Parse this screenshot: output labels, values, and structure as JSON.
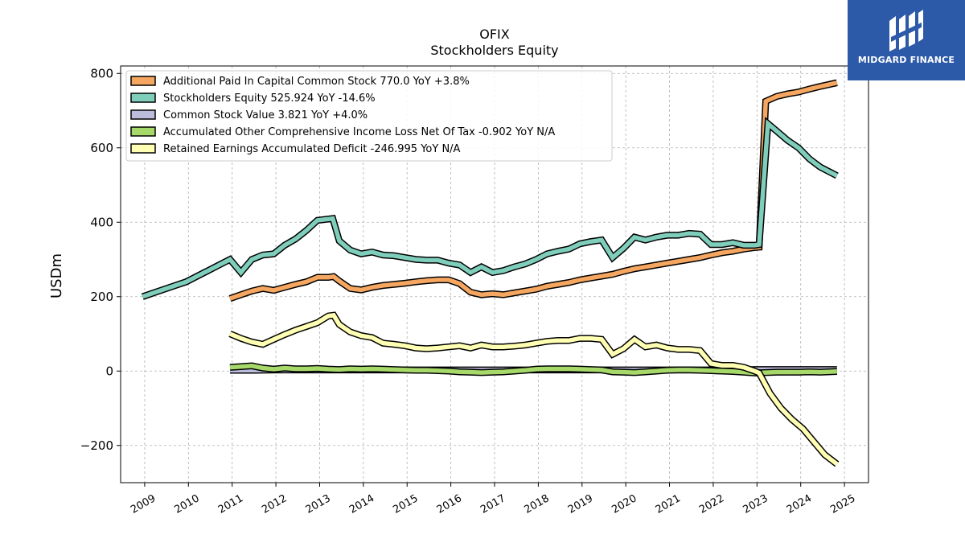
{
  "logo": {
    "text": "MIDGARD FINANCE",
    "color": "#2c5aa8"
  },
  "chart_data": {
    "type": "line",
    "title": "OFIX",
    "subtitle": "Stockholders  Equity",
    "xlabel": "",
    "ylabel": "USDm",
    "xlim": [
      2008.45,
      2025.55
    ],
    "ylim": [
      -300,
      820
    ],
    "yticks": [
      -200,
      0,
      200,
      400,
      600,
      800
    ],
    "yticklabels": [
      "−200",
      "0",
      "200",
      "400",
      "600",
      "800"
    ],
    "xticks": [
      2009,
      2010,
      2011,
      2012,
      2013,
      2014,
      2015,
      2016,
      2017,
      2018,
      2019,
      2020,
      2021,
      2022,
      2023,
      2024,
      2025
    ],
    "xticklabels": [
      "2009",
      "2010",
      "2011",
      "2012",
      "2013",
      "2014",
      "2015",
      "2016",
      "2017",
      "2018",
      "2019",
      "2020",
      "2021",
      "2022",
      "2023",
      "2024",
      "2025"
    ],
    "grid": true,
    "legend_position": "top-left",
    "series": [
      {
        "name": "Additional Paid In Capital Common Stock  770.0 YoY +3.8%",
        "color": "#f5a660",
        "points": [
          [
            2010.95,
            195
          ],
          [
            2011.2,
            205
          ],
          [
            2011.45,
            215
          ],
          [
            2011.7,
            222
          ],
          [
            2011.95,
            217
          ],
          [
            2012.2,
            225
          ],
          [
            2012.45,
            233
          ],
          [
            2012.7,
            240
          ],
          [
            2012.95,
            252
          ],
          [
            2013.2,
            252
          ],
          [
            2013.32,
            254
          ],
          [
            2013.45,
            242
          ],
          [
            2013.7,
            222
          ],
          [
            2013.95,
            218
          ],
          [
            2014.2,
            225
          ],
          [
            2014.45,
            230
          ],
          [
            2014.7,
            233
          ],
          [
            2014.95,
            236
          ],
          [
            2015.2,
            240
          ],
          [
            2015.45,
            243
          ],
          [
            2015.7,
            245
          ],
          [
            2015.95,
            245
          ],
          [
            2016.2,
            235
          ],
          [
            2016.45,
            212
          ],
          [
            2016.7,
            205
          ],
          [
            2016.95,
            208
          ],
          [
            2017.2,
            205
          ],
          [
            2017.45,
            210
          ],
          [
            2017.7,
            215
          ],
          [
            2017.95,
            220
          ],
          [
            2018.2,
            228
          ],
          [
            2018.45,
            233
          ],
          [
            2018.7,
            238
          ],
          [
            2018.95,
            245
          ],
          [
            2019.2,
            250
          ],
          [
            2019.45,
            255
          ],
          [
            2019.7,
            260
          ],
          [
            2019.95,
            268
          ],
          [
            2020.2,
            275
          ],
          [
            2020.45,
            280
          ],
          [
            2020.7,
            285
          ],
          [
            2020.95,
            290
          ],
          [
            2021.2,
            295
          ],
          [
            2021.45,
            300
          ],
          [
            2021.7,
            305
          ],
          [
            2021.95,
            312
          ],
          [
            2022.2,
            318
          ],
          [
            2022.45,
            322
          ],
          [
            2022.7,
            328
          ],
          [
            2022.95,
            332
          ],
          [
            2023.05,
            333
          ],
          [
            2023.2,
            725
          ],
          [
            2023.45,
            738
          ],
          [
            2023.7,
            745
          ],
          [
            2023.95,
            750
          ],
          [
            2024.2,
            758
          ],
          [
            2024.45,
            765
          ],
          [
            2024.83,
            775
          ]
        ]
      },
      {
        "name": "Stockholders Equity  525.924 YoY -14.6%",
        "color": "#7fcdbb",
        "points": [
          [
            2008.95,
            200
          ],
          [
            2009.2,
            210
          ],
          [
            2009.45,
            220
          ],
          [
            2009.7,
            230
          ],
          [
            2009.95,
            240
          ],
          [
            2010.2,
            255
          ],
          [
            2010.45,
            270
          ],
          [
            2010.7,
            285
          ],
          [
            2010.95,
            300
          ],
          [
            2011.2,
            265
          ],
          [
            2011.45,
            300
          ],
          [
            2011.7,
            312
          ],
          [
            2011.95,
            315
          ],
          [
            2012.2,
            338
          ],
          [
            2012.45,
            355
          ],
          [
            2012.7,
            378
          ],
          [
            2012.95,
            405
          ],
          [
            2013.3,
            410
          ],
          [
            2013.45,
            350
          ],
          [
            2013.7,
            325
          ],
          [
            2013.95,
            315
          ],
          [
            2014.2,
            320
          ],
          [
            2014.45,
            312
          ],
          [
            2014.7,
            310
          ],
          [
            2014.95,
            305
          ],
          [
            2015.2,
            300
          ],
          [
            2015.45,
            298
          ],
          [
            2015.7,
            298
          ],
          [
            2015.95,
            290
          ],
          [
            2016.2,
            285
          ],
          [
            2016.45,
            265
          ],
          [
            2016.7,
            280
          ],
          [
            2016.95,
            265
          ],
          [
            2017.2,
            270
          ],
          [
            2017.45,
            280
          ],
          [
            2017.7,
            288
          ],
          [
            2017.95,
            300
          ],
          [
            2018.2,
            315
          ],
          [
            2018.45,
            322
          ],
          [
            2018.7,
            328
          ],
          [
            2018.95,
            342
          ],
          [
            2019.2,
            348
          ],
          [
            2019.45,
            352
          ],
          [
            2019.7,
            305
          ],
          [
            2019.95,
            330
          ],
          [
            2020.2,
            360
          ],
          [
            2020.45,
            352
          ],
          [
            2020.7,
            360
          ],
          [
            2020.95,
            365
          ],
          [
            2021.2,
            365
          ],
          [
            2021.45,
            370
          ],
          [
            2021.7,
            368
          ],
          [
            2021.95,
            340
          ],
          [
            2022.2,
            340
          ],
          [
            2022.45,
            345
          ],
          [
            2022.7,
            338
          ],
          [
            2022.95,
            338
          ],
          [
            2023.05,
            340
          ],
          [
            2023.25,
            665
          ],
          [
            2023.45,
            645
          ],
          [
            2023.7,
            620
          ],
          [
            2023.95,
            600
          ],
          [
            2024.2,
            570
          ],
          [
            2024.45,
            548
          ],
          [
            2024.83,
            525
          ]
        ]
      },
      {
        "name": "Common Stock Value  3.821 YoY +4.0%",
        "color": "#bcbddc",
        "points": [
          [
            2010.95,
            2
          ],
          [
            2011.5,
            2
          ],
          [
            2012,
            3
          ],
          [
            2013,
            3
          ],
          [
            2014,
            3
          ],
          [
            2015,
            3
          ],
          [
            2016,
            3
          ],
          [
            2017,
            3
          ],
          [
            2018,
            3
          ],
          [
            2019,
            3
          ],
          [
            2020,
            3
          ],
          [
            2021,
            3
          ],
          [
            2022,
            3
          ],
          [
            2023,
            4
          ],
          [
            2024,
            4
          ],
          [
            2024.83,
            4
          ]
        ]
      },
      {
        "name": "Accumulated Other Comprehensive Income Loss Net Of Tax  -0.902 YoY N/A",
        "color": "#a6d96a",
        "points": [
          [
            2010.95,
            10
          ],
          [
            2011.2,
            12
          ],
          [
            2011.45,
            14
          ],
          [
            2011.7,
            8
          ],
          [
            2011.95,
            5
          ],
          [
            2012.2,
            8
          ],
          [
            2012.45,
            6
          ],
          [
            2012.7,
            6
          ],
          [
            2012.95,
            7
          ],
          [
            2013.2,
            5
          ],
          [
            2013.45,
            4
          ],
          [
            2013.7,
            6
          ],
          [
            2013.95,
            5
          ],
          [
            2014.2,
            6
          ],
          [
            2014.45,
            5
          ],
          [
            2014.7,
            4
          ],
          [
            2014.95,
            3
          ],
          [
            2015.2,
            2
          ],
          [
            2015.45,
            2
          ],
          [
            2015.7,
            1
          ],
          [
            2015.95,
            0
          ],
          [
            2016.2,
            -2
          ],
          [
            2016.45,
            -3
          ],
          [
            2016.7,
            -4
          ],
          [
            2016.95,
            -3
          ],
          [
            2017.2,
            -2
          ],
          [
            2017.45,
            0
          ],
          [
            2017.7,
            2
          ],
          [
            2017.95,
            5
          ],
          [
            2018.2,
            6
          ],
          [
            2018.45,
            6
          ],
          [
            2018.7,
            6
          ],
          [
            2018.95,
            5
          ],
          [
            2019.2,
            4
          ],
          [
            2019.45,
            3
          ],
          [
            2019.7,
            -2
          ],
          [
            2019.95,
            -3
          ],
          [
            2020.2,
            -4
          ],
          [
            2020.45,
            -2
          ],
          [
            2020.7,
            0
          ],
          [
            2020.95,
            2
          ],
          [
            2021.2,
            3
          ],
          [
            2021.45,
            3
          ],
          [
            2021.7,
            2
          ],
          [
            2021.95,
            1
          ],
          [
            2022.2,
            0
          ],
          [
            2022.45,
            -1
          ],
          [
            2022.7,
            -3
          ],
          [
            2022.95,
            -5
          ],
          [
            2023.2,
            -4
          ],
          [
            2023.45,
            -3
          ],
          [
            2023.7,
            -3
          ],
          [
            2023.95,
            -3
          ],
          [
            2024.2,
            -2
          ],
          [
            2024.45,
            -3
          ],
          [
            2024.83,
            -1
          ]
        ]
      },
      {
        "name": "Retained Earnings Accumulated Deficit  -246.995 YoY N/A",
        "color": "#ffffb3",
        "points": [
          [
            2010.95,
            100
          ],
          [
            2011.2,
            88
          ],
          [
            2011.45,
            78
          ],
          [
            2011.7,
            72
          ],
          [
            2011.95,
            85
          ],
          [
            2012.2,
            98
          ],
          [
            2012.45,
            110
          ],
          [
            2012.7,
            120
          ],
          [
            2012.95,
            130
          ],
          [
            2013.2,
            148
          ],
          [
            2013.32,
            150
          ],
          [
            2013.45,
            125
          ],
          [
            2013.7,
            105
          ],
          [
            2013.95,
            95
          ],
          [
            2014.2,
            90
          ],
          [
            2014.45,
            75
          ],
          [
            2014.7,
            72
          ],
          [
            2014.95,
            68
          ],
          [
            2015.2,
            62
          ],
          [
            2015.45,
            60
          ],
          [
            2015.7,
            62
          ],
          [
            2015.95,
            65
          ],
          [
            2016.2,
            68
          ],
          [
            2016.45,
            62
          ],
          [
            2016.7,
            70
          ],
          [
            2016.95,
            65
          ],
          [
            2017.2,
            65
          ],
          [
            2017.45,
            67
          ],
          [
            2017.7,
            70
          ],
          [
            2017.95,
            75
          ],
          [
            2018.2,
            80
          ],
          [
            2018.45,
            82
          ],
          [
            2018.7,
            82
          ],
          [
            2018.95,
            88
          ],
          [
            2019.2,
            88
          ],
          [
            2019.45,
            85
          ],
          [
            2019.7,
            45
          ],
          [
            2019.95,
            60
          ],
          [
            2020.2,
            85
          ],
          [
            2020.45,
            65
          ],
          [
            2020.7,
            70
          ],
          [
            2020.95,
            62
          ],
          [
            2021.2,
            58
          ],
          [
            2021.45,
            58
          ],
          [
            2021.7,
            55
          ],
          [
            2021.95,
            20
          ],
          [
            2022.2,
            15
          ],
          [
            2022.45,
            15
          ],
          [
            2022.7,
            10
          ],
          [
            2022.95,
            0
          ],
          [
            2023.05,
            -5
          ],
          [
            2023.3,
            -60
          ],
          [
            2023.55,
            -100
          ],
          [
            2023.8,
            -130
          ],
          [
            2024.05,
            -155
          ],
          [
            2024.3,
            -190
          ],
          [
            2024.55,
            -225
          ],
          [
            2024.83,
            -250
          ]
        ]
      }
    ]
  }
}
